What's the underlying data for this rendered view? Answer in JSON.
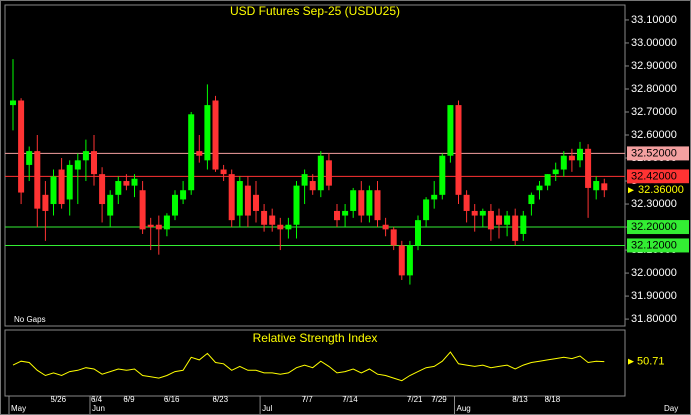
{
  "chart_data": {
    "type": "candlestick",
    "title": "USD Futures Sep-25 (USDU25)",
    "note": "No Gaps",
    "categories": [
      null,
      null,
      null,
      null,
      null,
      "5/26",
      null,
      null,
      null,
      null,
      "6/4",
      null,
      null,
      null,
      "6/9",
      null,
      null,
      null,
      null,
      "6/16",
      null,
      null,
      null,
      null,
      null,
      "6/23",
      null,
      null,
      null,
      null,
      null,
      null,
      null,
      null,
      null,
      null,
      "7/7",
      null,
      null,
      null,
      null,
      "7/14",
      null,
      null,
      null,
      null,
      null,
      null,
      null,
      "7/21",
      null,
      null,
      "7/29",
      null,
      null,
      null,
      null,
      null,
      null,
      null,
      null,
      null,
      "8/13",
      null,
      null,
      null,
      "8/18",
      null,
      null,
      null,
      null,
      null,
      null,
      null
    ],
    "months": [
      "May",
      null,
      null,
      null,
      null,
      null,
      null,
      null,
      null,
      null,
      "Jun",
      null,
      null,
      null,
      null,
      null,
      null,
      null,
      null,
      null,
      null,
      null,
      null,
      null,
      null,
      null,
      null,
      null,
      null,
      null,
      null,
      "Jul",
      null,
      null,
      null,
      null,
      null,
      null,
      null,
      null,
      null,
      null,
      null,
      null,
      null,
      null,
      null,
      null,
      null,
      null,
      null,
      null,
      null,
      null,
      null,
      "Aug",
      null,
      null,
      null,
      null,
      null,
      null,
      null,
      null,
      null,
      null,
      null,
      null,
      null,
      null,
      null,
      null,
      null,
      null
    ],
    "period": "Day",
    "open": [
      32.73,
      32.75,
      32.47,
      32.53,
      32.34,
      32.3,
      32.45,
      32.32,
      32.45,
      32.49,
      32.53,
      32.43,
      32.25,
      32.34,
      32.4,
      32.38,
      32.36,
      32.21,
      32.21,
      32.19,
      32.25,
      32.32,
      32.36,
      32.53,
      32.49,
      32.75,
      32.45,
      32.43,
      32.25,
      32.38,
      32.34,
      32.27,
      32.25,
      32.21,
      32.19,
      32.21,
      32.38,
      32.4,
      32.36,
      32.49,
      32.27,
      32.25,
      32.27,
      32.36,
      32.25,
      32.36,
      32.21,
      32.19,
      32.12,
      31.99,
      32.12,
      32.23,
      32.32,
      32.34,
      32.51,
      32.73,
      32.34,
      32.27,
      32.25,
      32.27,
      32.25,
      32.21,
      32.25,
      32.17,
      32.3,
      32.36,
      32.38,
      32.43,
      32.45,
      32.51,
      32.49,
      32.54,
      32.36,
      32.39
    ],
    "high": [
      32.93,
      32.76,
      32.55,
      32.6,
      32.4,
      32.45,
      32.5,
      32.49,
      32.52,
      32.58,
      32.6,
      32.46,
      32.36,
      32.42,
      32.43,
      32.43,
      32.4,
      32.24,
      32.25,
      32.26,
      32.36,
      32.4,
      32.7,
      32.6,
      32.82,
      32.77,
      32.47,
      32.45,
      32.42,
      32.42,
      32.4,
      32.3,
      32.28,
      32.24,
      32.24,
      32.4,
      32.45,
      32.43,
      32.53,
      32.52,
      32.3,
      32.3,
      32.37,
      32.4,
      32.38,
      32.4,
      32.24,
      32.2,
      32.14,
      32.14,
      32.25,
      32.33,
      32.4,
      32.52,
      32.73,
      32.75,
      32.36,
      32.3,
      32.28,
      32.3,
      32.28,
      32.27,
      32.28,
      32.27,
      32.35,
      32.4,
      32.43,
      32.48,
      32.53,
      32.54,
      32.57,
      32.56,
      32.42,
      32.41
    ],
    "low": [
      32.62,
      32.3,
      32.4,
      32.2,
      32.14,
      32.25,
      32.28,
      32.25,
      32.3,
      32.4,
      32.38,
      32.22,
      32.2,
      32.3,
      32.36,
      32.33,
      32.17,
      32.1,
      32.08,
      32.16,
      32.23,
      32.3,
      32.34,
      32.48,
      32.45,
      32.44,
      32.4,
      32.2,
      32.2,
      32.2,
      32.22,
      32.18,
      32.18,
      32.1,
      32.15,
      32.15,
      32.3,
      32.34,
      32.33,
      32.36,
      32.2,
      32.2,
      32.24,
      32.22,
      32.22,
      32.2,
      32.16,
      32.1,
      31.97,
      31.95,
      32.1,
      32.2,
      32.28,
      32.32,
      32.48,
      32.3,
      32.22,
      32.18,
      32.2,
      32.14,
      32.15,
      32.16,
      32.12,
      32.14,
      32.25,
      32.32,
      32.36,
      32.4,
      32.42,
      32.44,
      32.46,
      32.24,
      32.32,
      32.33
    ],
    "close": [
      32.75,
      32.35,
      32.53,
      32.28,
      32.27,
      32.42,
      32.3,
      32.47,
      32.49,
      32.53,
      32.43,
      32.3,
      32.34,
      32.4,
      32.38,
      32.41,
      32.19,
      32.2,
      32.19,
      32.25,
      32.34,
      32.36,
      32.69,
      32.51,
      32.73,
      32.45,
      32.43,
      32.23,
      32.4,
      32.25,
      32.27,
      32.21,
      32.21,
      32.19,
      32.21,
      32.38,
      32.43,
      32.36,
      32.51,
      32.38,
      32.23,
      32.27,
      32.36,
      32.25,
      32.36,
      32.23,
      32.19,
      32.12,
      31.99,
      32.12,
      32.23,
      32.32,
      32.34,
      32.51,
      32.73,
      32.34,
      32.27,
      32.25,
      32.27,
      32.19,
      32.21,
      32.25,
      32.14,
      32.25,
      32.34,
      32.38,
      32.43,
      32.45,
      32.51,
      32.49,
      32.54,
      32.37,
      32.4,
      32.36
    ],
    "up_color": "#00ff00",
    "down_color": "#ff3333",
    "ylim": [
      31.77,
      33.165
    ],
    "yticks": [
      {
        "value": 33.1,
        "label": "33.10000"
      },
      {
        "value": 33.0,
        "label": "33.00000"
      },
      {
        "value": 32.9,
        "label": "32.90000"
      },
      {
        "value": 32.8,
        "label": "32.80000"
      },
      {
        "value": 32.7,
        "label": "32.70000"
      },
      {
        "value": 32.6,
        "label": "32.60000"
      },
      {
        "value": 32.5,
        "label": "32.50000"
      },
      {
        "value": 32.4,
        "label": "32.40000"
      },
      {
        "value": 32.3,
        "label": "32.30000"
      },
      {
        "value": 32.2,
        "label": "32.20000"
      },
      {
        "value": 32.1,
        "label": "32.10000"
      },
      {
        "value": 32.0,
        "label": "32.00000"
      },
      {
        "value": 31.9,
        "label": "31.90000"
      },
      {
        "value": 31.8,
        "label": "31.80000"
      }
    ],
    "price_lines": [
      {
        "value": 32.52,
        "label": "32.52000",
        "color": "#f4a0a0"
      },
      {
        "value": 32.42,
        "label": "32.42000",
        "color": "#ff3333"
      },
      {
        "value": 32.2,
        "label": "32.20000",
        "color": "#33ee33"
      },
      {
        "value": 32.12,
        "label": "32.12000",
        "color": "#33ee33"
      }
    ],
    "last_price": {
      "value": 32.36,
      "label": "32.36000",
      "color": "#ffff00"
    },
    "rsi": {
      "title": "Relative Strength Index",
      "color": "#ffff00",
      "ylim": [
        25,
        75
      ],
      "values": [
        48,
        51,
        50,
        44,
        40,
        42,
        40,
        43,
        44,
        46,
        45,
        41,
        43,
        45,
        44,
        45,
        40,
        39,
        38,
        40,
        43,
        44,
        54,
        52,
        57,
        50,
        49,
        44,
        47,
        44,
        44,
        42,
        42,
        41,
        42,
        46,
        48,
        46,
        51,
        47,
        42,
        43,
        45,
        42,
        45,
        41,
        40,
        38,
        36,
        40,
        43,
        46,
        47,
        51,
        58,
        49,
        48,
        47,
        48,
        46,
        47,
        48,
        45,
        48,
        50,
        51,
        52,
        53,
        54,
        53,
        55,
        50,
        51,
        50.71
      ]
    }
  }
}
